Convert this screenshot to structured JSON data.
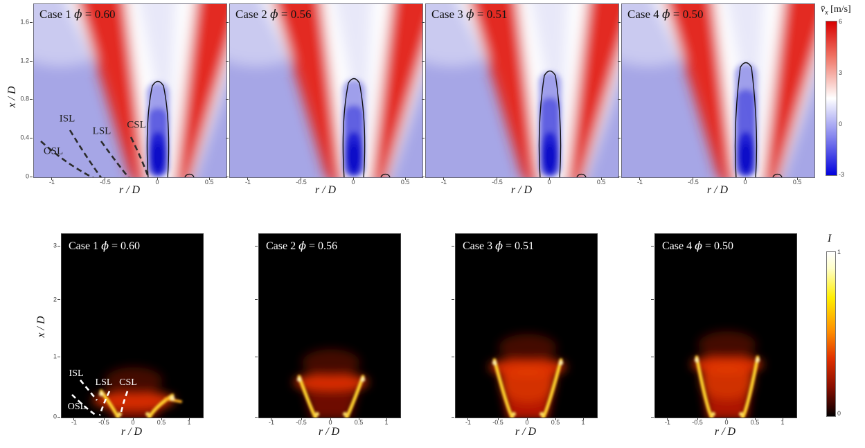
{
  "top_row": {
    "ylabel": "x / D",
    "xlabel": "r / D",
    "yticks": [
      "0",
      "0.4",
      "0.8",
      "1.2",
      "1.6"
    ],
    "xticks": [
      "-1",
      "-0.5",
      "0",
      "0.5"
    ],
    "colorbar": {
      "symbol": "v̄",
      "sub": "x",
      "units": " [m/s]",
      "ticks": [
        "6",
        "3",
        "0",
        "-3"
      ]
    },
    "annotations": [
      "ISL",
      "LSL",
      "CSL",
      "OSL"
    ],
    "panels": [
      {
        "case": "Case 1 ",
        "phi": "ϕ",
        "value": " = 0.60"
      },
      {
        "case": "Case 2 ",
        "phi": "ϕ",
        "value": " = 0.56"
      },
      {
        "case": "Case 3 ",
        "phi": "ϕ",
        "value": " = 0.51"
      },
      {
        "case": "Case 4 ",
        "phi": "ϕ",
        "value": " = 0.50"
      }
    ]
  },
  "bottom_row": {
    "ylabel": "x / D",
    "xlabel": "r / D",
    "yticks": [
      "0",
      "1",
      "2",
      "3"
    ],
    "xticks": [
      "-1",
      "-0.5",
      "0",
      "0.5",
      "1"
    ],
    "colorbar": {
      "symbol": "I",
      "sub": "",
      "units": "",
      "ticks": [
        "1",
        "0"
      ]
    },
    "annotations": [
      "ISL",
      "LSL",
      "CSL",
      "OSL"
    ],
    "panels": [
      {
        "case": "Case 1 ",
        "phi": "ϕ",
        "value": " = 0.60"
      },
      {
        "case": "Case 2 ",
        "phi": "ϕ",
        "value": " = 0.56"
      },
      {
        "case": "Case 3 ",
        "phi": "ϕ",
        "value": " = 0.51"
      },
      {
        "case": "Case 4 ",
        "phi": "ϕ",
        "value": " = 0.50"
      }
    ]
  },
  "chart_data": [
    {
      "type": "heatmap",
      "title": "Mean axial velocity fields",
      "xlabel": "r / D",
      "ylabel": "x / D",
      "x_range": [
        -1.2,
        0.67
      ],
      "y_range": [
        0,
        1.8
      ],
      "x_ticks": [
        -1,
        -0.5,
        0,
        0.5
      ],
      "y_ticks": [
        0,
        0.4,
        0.8,
        1.2,
        1.6
      ],
      "colorbar": {
        "label": "v̄x [m/s]",
        "range": [
          -3,
          6
        ],
        "ticks": [
          6,
          3,
          0,
          -3
        ],
        "colormap": "blue-white-red diverging"
      },
      "panels": [
        {
          "case": "Case 1",
          "phi": 0.6,
          "recirculation_contour_top_xD": 1.05
        },
        {
          "case": "Case 2",
          "phi": 0.56,
          "recirculation_contour_top_xD": 1.08
        },
        {
          "case": "Case 3",
          "phi": 0.51,
          "recirculation_contour_top_xD": 1.15
        },
        {
          "case": "Case 4",
          "phi": 0.5,
          "recirculation_contour_top_xD": 1.25
        }
      ],
      "annotations": [
        "ISL",
        "LSL",
        "CSL",
        "OSL"
      ],
      "features": "Two high-velocity red annular jets (~6 m/s) diverge upward from r/D ≈ ±0.2, flanking a central blue reverse-flow column (~ -3 m/s) centered at r/D = 0 that is outlined by a black zero-velocity contour; dashed lines in Case 1 mark outer (OSL), inner (ISL), lip (LSL) and center (CSL) shear layers"
    },
    {
      "type": "heatmap",
      "title": "Normalized flame luminosity",
      "xlabel": "r / D",
      "ylabel": "x / D",
      "x_range": [
        -1.25,
        1.2
      ],
      "y_range": [
        0,
        3.2
      ],
      "x_ticks": [
        -1,
        -0.5,
        0,
        0.5,
        1
      ],
      "y_ticks": [
        0,
        1,
        2,
        3
      ],
      "colorbar": {
        "label": "I",
        "range": [
          0,
          1
        ],
        "ticks": [
          1,
          0
        ],
        "colormap": "hot (black-red-yellow-white)"
      },
      "panels": [
        {
          "case": "Case 1",
          "phi": 0.6,
          "flame_top_xD": 0.6,
          "flame_arm_tip_rD": 0.78
        },
        {
          "case": "Case 2",
          "phi": 0.56,
          "flame_top_xD": 0.85,
          "flame_arm_tip_rD": 0.55
        },
        {
          "case": "Case 3",
          "phi": 0.51,
          "flame_top_xD": 1.05,
          "flame_arm_tip_rD": 0.58
        },
        {
          "case": "Case 4",
          "phi": 0.5,
          "flame_top_xD": 1.1,
          "flame_arm_tip_rD": 0.53
        }
      ],
      "annotations": [
        "ISL",
        "LSL",
        "CSL",
        "OSL"
      ],
      "features": "V-shaped flame with bright yellow arms anchored near r/D ≈ ±0.3 at the base, spreading outward; white dashed lines in Case 1 mark OSL, ISL, LSL and CSL shear layers"
    }
  ]
}
